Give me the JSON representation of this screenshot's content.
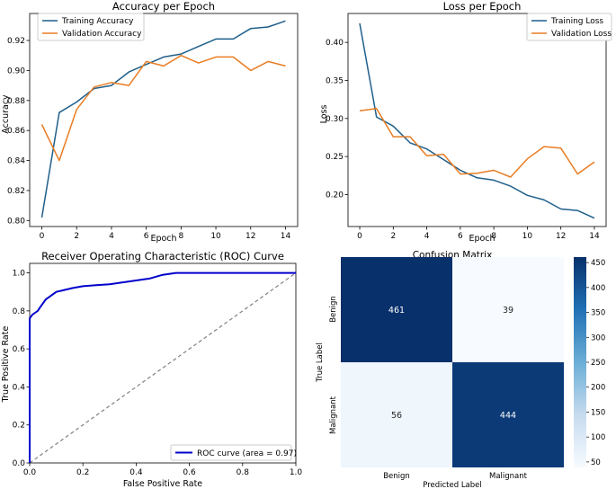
{
  "colors": {
    "train": "#1f5f8b",
    "val": "#e87d23",
    "roc": "#0000cc",
    "diag": "#808080",
    "cm_dark": "#08306b",
    "cm_light": "#f7fbff"
  },
  "chart_data": [
    {
      "type": "line",
      "title": "Accuracy per Epoch",
      "xlabel": "Epoch",
      "ylabel": "Accuracy",
      "xlim": [
        -0.7,
        14.7
      ],
      "ylim": [
        0.796,
        0.938
      ],
      "xticks": [
        "0",
        "2",
        "4",
        "6",
        "8",
        "10",
        "12",
        "14"
      ],
      "yticks": [
        "0.80",
        "0.82",
        "0.84",
        "0.86",
        "0.88",
        "0.90",
        "0.92"
      ],
      "legend_position": "top-left",
      "x": [
        0,
        1,
        2,
        3,
        4,
        5,
        6,
        7,
        8,
        9,
        10,
        11,
        12,
        13,
        14
      ],
      "series": [
        {
          "name": "Training Accuracy",
          "color_key": "train",
          "values": [
            0.802,
            0.872,
            0.879,
            0.888,
            0.89,
            0.899,
            0.904,
            0.909,
            0.911,
            0.916,
            0.921,
            0.921,
            0.928,
            0.929,
            0.933
          ]
        },
        {
          "name": "Validation Accuracy",
          "color_key": "val",
          "values": [
            0.864,
            0.84,
            0.874,
            0.889,
            0.892,
            0.89,
            0.906,
            0.903,
            0.91,
            0.905,
            0.909,
            0.909,
            0.9,
            0.906,
            0.903
          ]
        }
      ]
    },
    {
      "type": "line",
      "title": "Loss per Epoch",
      "xlabel": "Epoch",
      "ylabel": "Loss",
      "xlim": [
        -0.7,
        14.7
      ],
      "ylim": [
        0.158,
        0.438
      ],
      "xticks": [
        "0",
        "2",
        "4",
        "6",
        "8",
        "10",
        "12",
        "14"
      ],
      "yticks": [
        "0.20",
        "0.25",
        "0.30",
        "0.35",
        "0.40"
      ],
      "legend_position": "top-right",
      "x": [
        0,
        1,
        2,
        3,
        4,
        5,
        6,
        7,
        8,
        9,
        10,
        11,
        12,
        13,
        14
      ],
      "series": [
        {
          "name": "Training Loss",
          "color_key": "train",
          "values": [
            0.425,
            0.302,
            0.29,
            0.268,
            0.26,
            0.246,
            0.232,
            0.222,
            0.219,
            0.211,
            0.199,
            0.193,
            0.181,
            0.179,
            0.169
          ]
        },
        {
          "name": "Validation Loss",
          "color_key": "val",
          "values": [
            0.31,
            0.313,
            0.276,
            0.276,
            0.251,
            0.253,
            0.227,
            0.228,
            0.232,
            0.223,
            0.247,
            0.263,
            0.261,
            0.227,
            0.243
          ]
        }
      ]
    },
    {
      "type": "line",
      "title": "Receiver Operating Characteristic (ROC) Curve",
      "xlabel": "False Positive Rate",
      "ylabel": "True Positive Rate",
      "xlim": [
        0,
        1
      ],
      "ylim": [
        0,
        1.05
      ],
      "xticks": [
        "0.0",
        "0.2",
        "0.4",
        "0.6",
        "0.8",
        "1.0"
      ],
      "yticks": [
        "0.0",
        "0.2",
        "0.4",
        "0.6",
        "0.8",
        "1.0"
      ],
      "legend_position": "lower-right",
      "series": [
        {
          "name": "ROC curve (area = 0.97)",
          "color_key": "roc",
          "x": [
            0,
            0,
            0.01,
            0.02,
            0.03,
            0.04,
            0.05,
            0.06,
            0.08,
            0.1,
            0.13,
            0.16,
            0.2,
            0.25,
            0.3,
            0.35,
            0.4,
            0.45,
            0.5,
            0.55,
            0.6,
            0.7,
            0.8,
            0.9,
            1.0
          ],
          "y": [
            0,
            0.76,
            0.78,
            0.79,
            0.8,
            0.82,
            0.84,
            0.86,
            0.88,
            0.9,
            0.91,
            0.92,
            0.93,
            0.935,
            0.94,
            0.95,
            0.96,
            0.97,
            0.99,
            1.0,
            1.0,
            1.0,
            1.0,
            1.0,
            1.0
          ]
        }
      ],
      "diagonal": {
        "x": [
          0,
          1
        ],
        "y": [
          0,
          1
        ],
        "style": "dashed"
      }
    },
    {
      "type": "heatmap",
      "title": "Confusion Matrix",
      "xlabel": "Predicted Label",
      "ylabel": "True Label",
      "x_categories": [
        "Benign",
        "Malignant"
      ],
      "y_categories": [
        "Benign",
        "Malignant"
      ],
      "values": [
        [
          461,
          39
        ],
        [
          56,
          444
        ]
      ],
      "colorbar": {
        "min": 39,
        "max": 461,
        "ticks": [
          "50",
          "100",
          "150",
          "200",
          "250",
          "300",
          "350",
          "400",
          "450"
        ]
      }
    }
  ]
}
